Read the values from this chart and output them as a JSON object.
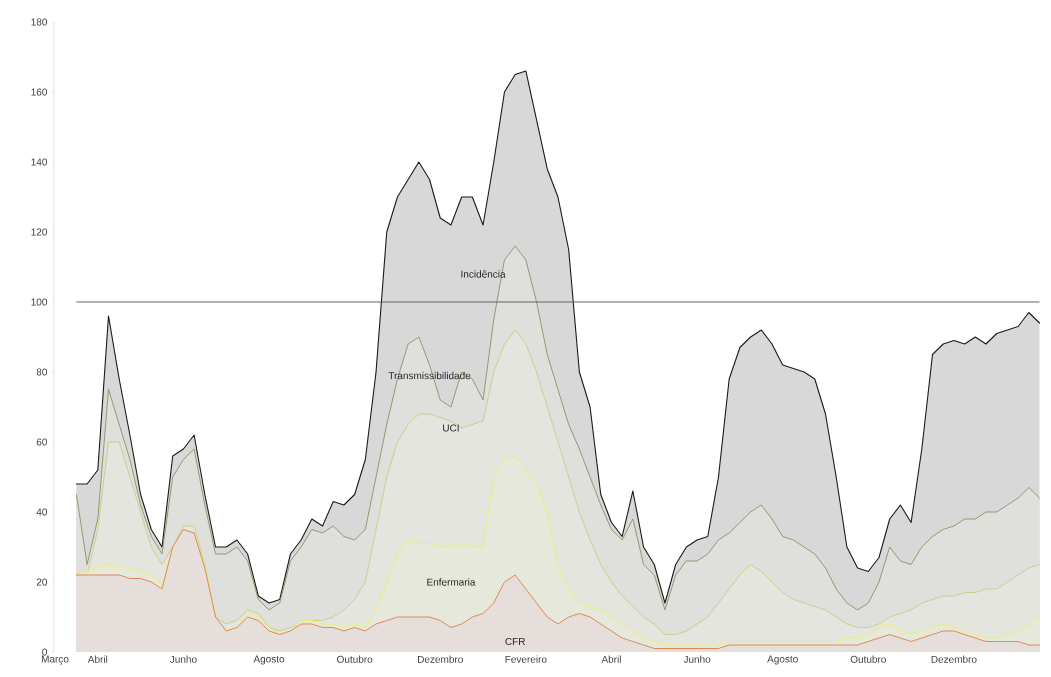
{
  "chart_data": {
    "type": "area",
    "categories": [
      "Março",
      null,
      null,
      null,
      "Abril",
      null,
      null,
      null,
      null,
      null,
      null,
      null,
      "Junho",
      null,
      null,
      null,
      null,
      null,
      null,
      null,
      "Agosto",
      null,
      null,
      null,
      null,
      null,
      null,
      null,
      "Outubro",
      null,
      null,
      null,
      null,
      null,
      null,
      null,
      "Dezembro",
      null,
      null,
      null,
      null,
      null,
      null,
      null,
      "Fevereiro",
      null,
      null,
      null,
      null,
      null,
      null,
      null,
      "Abril",
      null,
      null,
      null,
      null,
      null,
      null,
      null,
      "Junho",
      null,
      null,
      null,
      null,
      null,
      null,
      null,
      "Agosto",
      null,
      null,
      null,
      null,
      null,
      null,
      null,
      "Outubro",
      null,
      null,
      null,
      null,
      null,
      null,
      null,
      "Dezembro",
      null,
      null,
      null,
      null,
      null,
      null,
      null,
      null
    ],
    "series": [
      {
        "name": "Incidência",
        "color": "#1a1a1a",
        "values": [
          null,
          null,
          48,
          48,
          52,
          96,
          78,
          62,
          45,
          35,
          30,
          56,
          58,
          62,
          45,
          30,
          30,
          32,
          28,
          16,
          14,
          15,
          28,
          32,
          38,
          36,
          43,
          42,
          45,
          55,
          80,
          120,
          130,
          135,
          140,
          135,
          124,
          122,
          130,
          130,
          122,
          140,
          160,
          165,
          166,
          152,
          138,
          130,
          115,
          80,
          70,
          45,
          37,
          33,
          46,
          30,
          25,
          14,
          25,
          30,
          32,
          33,
          50,
          78,
          87,
          90,
          92,
          88,
          82,
          81,
          80,
          78,
          68,
          50,
          30,
          24,
          23,
          27,
          38,
          42,
          37,
          58,
          85,
          88,
          89,
          88,
          90,
          88,
          91,
          92,
          93,
          97,
          94
        ]
      },
      {
        "name": "Transmissibilidade",
        "color": "#7d8a55",
        "values": [
          null,
          null,
          45,
          25,
          38,
          75,
          65,
          55,
          42,
          33,
          28,
          50,
          55,
          58,
          42,
          28,
          28,
          30,
          26,
          15,
          12,
          14,
          26,
          30,
          35,
          34,
          36,
          33,
          32,
          35,
          50,
          65,
          78,
          88,
          90,
          82,
          72,
          70,
          80,
          78,
          72,
          95,
          112,
          116,
          112,
          100,
          85,
          75,
          65,
          58,
          50,
          42,
          35,
          32,
          38,
          25,
          22,
          12,
          22,
          26,
          26,
          28,
          32,
          34,
          37,
          40,
          42,
          38,
          33,
          32,
          30,
          28,
          24,
          18,
          14,
          12,
          14,
          20,
          30,
          26,
          25,
          30,
          33,
          35,
          36,
          38,
          38,
          40,
          40,
          42,
          44,
          47,
          44
        ]
      },
      {
        "name": "UCI",
        "color": "#c2cc78",
        "values": [
          null,
          null,
          22,
          22,
          35,
          60,
          60,
          50,
          40,
          30,
          25,
          30,
          36,
          36,
          25,
          10,
          8,
          9,
          12,
          11,
          7,
          6,
          7,
          8,
          9,
          9,
          10,
          12,
          15,
          20,
          35,
          50,
          60,
          65,
          68,
          68,
          67,
          66,
          64,
          65,
          66,
          80,
          88,
          92,
          88,
          80,
          70,
          60,
          50,
          40,
          32,
          25,
          20,
          16,
          13,
          10,
          8,
          5,
          5,
          6,
          8,
          10,
          14,
          18,
          22,
          25,
          23,
          20,
          17,
          15,
          14,
          13,
          12,
          10,
          8,
          7,
          7,
          8,
          10,
          11,
          12,
          14,
          15,
          16,
          16,
          17,
          17,
          18,
          18,
          20,
          22,
          24,
          25
        ]
      },
      {
        "name": "Enfermaria",
        "color": "#eef05a",
        "values": [
          null,
          null,
          22,
          23,
          24,
          25,
          24,
          24,
          23,
          22,
          19,
          30,
          35,
          34,
          25,
          10,
          6,
          7,
          11,
          10,
          7,
          5,
          6,
          9,
          9,
          8,
          8,
          7,
          8,
          7,
          12,
          20,
          28,
          32,
          31,
          31,
          30,
          30,
          31,
          30,
          30,
          50,
          55,
          56,
          52,
          48,
          40,
          25,
          18,
          14,
          13,
          12,
          10,
          8,
          6,
          4,
          3,
          2,
          2,
          2,
          2,
          2,
          2,
          3,
          3,
          3,
          3,
          3,
          3,
          3,
          3,
          3,
          3,
          3,
          4,
          4,
          5,
          7,
          8,
          6,
          5,
          6,
          7,
          8,
          7,
          6,
          5,
          4,
          4,
          5,
          6,
          8,
          10
        ]
      },
      {
        "name": "CFR",
        "color": "#d9733a",
        "values": [
          null,
          null,
          22,
          22,
          22,
          22,
          22,
          21,
          21,
          20,
          18,
          30,
          35,
          34,
          24,
          10,
          6,
          7,
          10,
          9,
          6,
          5,
          6,
          8,
          8,
          7,
          7,
          6,
          7,
          6,
          8,
          9,
          10,
          10,
          10,
          10,
          9,
          7,
          8,
          10,
          11,
          14,
          20,
          22,
          18,
          14,
          10,
          8,
          10,
          11,
          10,
          8,
          6,
          4,
          3,
          2,
          1,
          1,
          1,
          1,
          1,
          1,
          1,
          2,
          2,
          2,
          2,
          2,
          2,
          2,
          2,
          2,
          2,
          2,
          2,
          2,
          3,
          4,
          5,
          4,
          3,
          4,
          5,
          6,
          6,
          5,
          4,
          3,
          3,
          3,
          3,
          2,
          2
        ]
      }
    ],
    "ylim": [
      0,
      180
    ],
    "yticks": [
      0,
      20,
      40,
      60,
      80,
      100,
      120,
      140,
      160,
      180
    ],
    "ref_lines": [
      {
        "axis": "y",
        "value": 100,
        "color": "#555555"
      }
    ],
    "grid": false,
    "legend": false,
    "marker": "none",
    "line_style": "solid"
  }
}
